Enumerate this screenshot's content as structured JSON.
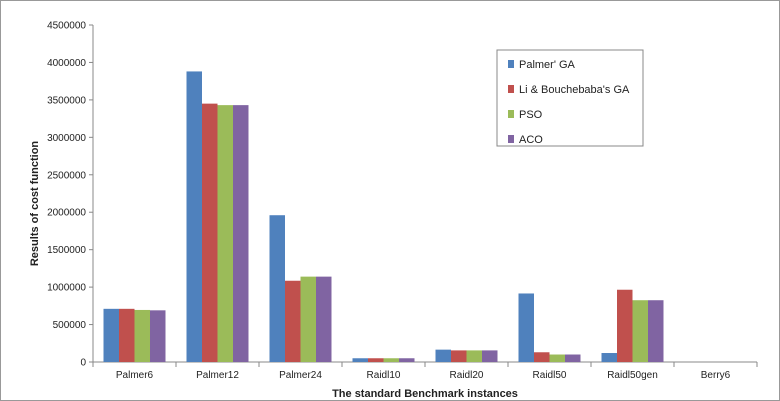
{
  "chart_data": {
    "type": "bar",
    "title": "",
    "xlabel": "The standard Benchmark instances",
    "ylabel": "Results of cost function",
    "ylim": [
      0,
      4500000
    ],
    "yticks": [
      0,
      500000,
      1000000,
      1500000,
      2000000,
      2500000,
      3000000,
      3500000,
      4000000,
      4500000
    ],
    "ytick_labels": [
      "0",
      "500000",
      "1000000",
      "1500000",
      "2000000",
      "2500000",
      "3000000",
      "3500000",
      "4000000",
      "4500000"
    ],
    "grid": false,
    "legend_position": "top-right",
    "categories": [
      "Palmer6",
      "Palmer12",
      "Palmer24",
      "Raidl10",
      "Raidl20",
      "Raidl50",
      "Raidl50gen",
      "Berry6"
    ],
    "series": [
      {
        "name": "Palmer' GA",
        "color": "#4F81BD",
        "values": [
          710000,
          3880000,
          1960000,
          50000,
          165000,
          915000,
          120000,
          0
        ]
      },
      {
        "name": "Li & Bouchebaba's GA",
        "color": "#C0504D",
        "values": [
          710000,
          3450000,
          1085000,
          50000,
          155000,
          130000,
          965000,
          0
        ]
      },
      {
        "name": "PSO",
        "color": "#9BBB59",
        "values": [
          695000,
          3430000,
          1140000,
          50000,
          155000,
          100000,
          825000,
          0
        ]
      },
      {
        "name": "ACO",
        "color": "#8064A2",
        "values": [
          690000,
          3430000,
          1140000,
          50000,
          155000,
          100000,
          825000,
          0
        ]
      }
    ]
  }
}
